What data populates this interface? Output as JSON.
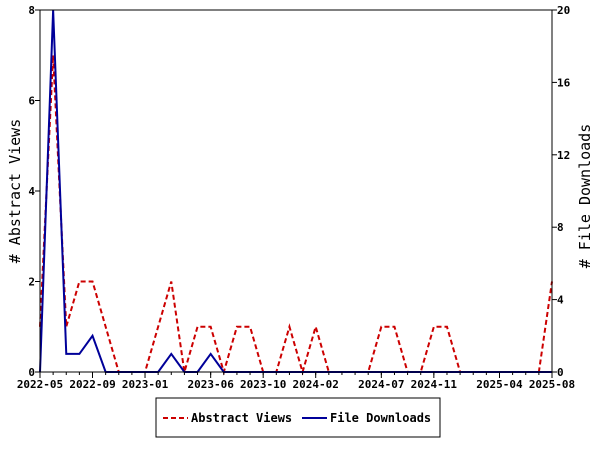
{
  "chart_data": {
    "type": "line",
    "ylabel_left": "# Abstract Views",
    "ylabel_right": "# File Downloads",
    "xlabel": "",
    "x_tick_labels": [
      "2022-05",
      "2022-09",
      "2023-01",
      "2023-06",
      "2023-10",
      "2024-02",
      "2024-07",
      "2024-11",
      "2025-04",
      "2025-08"
    ],
    "ylim_left": [
      0,
      8
    ],
    "yticks_left": [
      "0",
      "2",
      "4",
      "6",
      "8"
    ],
    "ylim_right": [
      0,
      20
    ],
    "yticks_right": [
      "0",
      "4",
      "8",
      "12",
      "16",
      "20"
    ],
    "x": [
      "2022-05",
      "2022-06",
      "2022-07",
      "2022-08",
      "2022-09",
      "2022-10",
      "2022-11",
      "2022-12",
      "2023-01",
      "2023-02",
      "2023-03",
      "2023-04",
      "2023-05",
      "2023-06",
      "2023-07",
      "2023-08",
      "2023-09",
      "2023-10",
      "2023-11",
      "2023-12",
      "2024-01",
      "2024-02",
      "2024-03",
      "2024-04",
      "2024-05",
      "2024-06",
      "2024-07",
      "2024-08",
      "2024-09",
      "2024-10",
      "2024-11",
      "2024-12",
      "2025-01",
      "2025-02",
      "2025-03",
      "2025-04",
      "2025-05",
      "2025-06",
      "2025-07",
      "2025-08"
    ],
    "series": [
      {
        "name": "Abstract Views",
        "axis": "left",
        "color": "#cc0000",
        "dash": true,
        "values": [
          1,
          7,
          1,
          2,
          2,
          1,
          0,
          0,
          0,
          1,
          2,
          0,
          1,
          1,
          0,
          1,
          1,
          0,
          0,
          1,
          0,
          1,
          0,
          0,
          0,
          0,
          1,
          1,
          0,
          0,
          1,
          1,
          0,
          0,
          0,
          0,
          0,
          0,
          0,
          2
        ]
      },
      {
        "name": "File Downloads",
        "axis": "right",
        "color": "#000099",
        "dash": false,
        "values": [
          0,
          20,
          1,
          1,
          2,
          0,
          0,
          0,
          0,
          0,
          1,
          0,
          0,
          1,
          0,
          0,
          0,
          0,
          0,
          0,
          0,
          0,
          0,
          0,
          0,
          0,
          0,
          0,
          0,
          0,
          0,
          0,
          0,
          0,
          0,
          0,
          0,
          0,
          0,
          0
        ]
      }
    ],
    "legend_position": "bottom-center",
    "grid": false
  }
}
